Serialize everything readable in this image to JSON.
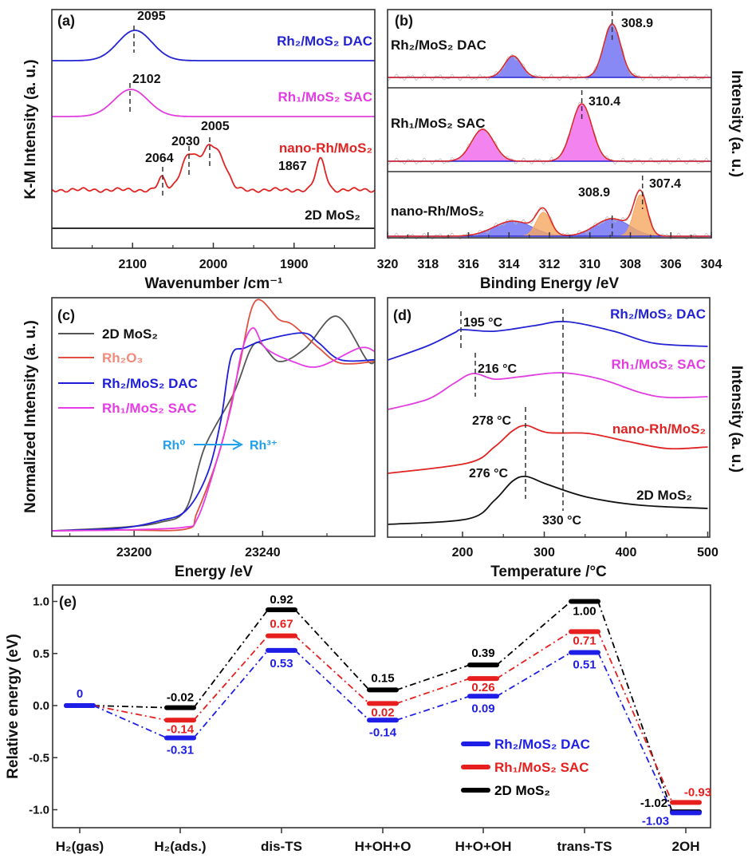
{
  "chart_data": [
    {
      "type": "line",
      "panel_label": "(a)",
      "xlabel": "Wavenumber /cm⁻¹",
      "ylabel": "K-M Intensity (a. u.)",
      "xlim": [
        2200,
        1800
      ],
      "xticks": [
        "2100",
        "2000",
        "1900"
      ],
      "xtick_values": [
        2100,
        2000,
        1900
      ],
      "series": [
        {
          "name": "Rh₂/MoS₂ DAC",
          "color": "#2323d2",
          "peaks": [
            {
              "center": 2097,
              "amplitude": 38,
              "width": 21
            }
          ]
        },
        {
          "name": "Rh₁/MoS₂ SAC",
          "color": "#e03ee0",
          "peaks": [
            {
              "center": 2102,
              "amplitude": 34,
              "width": 21
            }
          ]
        },
        {
          "name": "nano-Rh/MoS₂",
          "color": "#e02424",
          "peaks": [
            {
              "center": 2064,
              "amplitude": 15,
              "width": 4.5
            },
            {
              "center": 2030,
              "amplitude": 44,
              "width": 10
            },
            {
              "center": 2004,
              "amplitude": 52,
              "width": 10
            },
            {
              "center": 1988,
              "amplitude": 24,
              "width": 8
            },
            {
              "center": 1867,
              "amplitude": 38,
              "width": 6
            }
          ]
        },
        {
          "name": "2D MoS₂",
          "color": "#111111",
          "peaks": []
        }
      ],
      "annotations": [
        "2095",
        "2102",
        "2064",
        "2030",
        "2005",
        "1867"
      ]
    },
    {
      "type": "area",
      "panel_label": "(b)",
      "xlabel": "Binding Energy /eV",
      "ylabel": "Intensity (a. u.)",
      "xlim": [
        320,
        304
      ],
      "xticks": [
        "320",
        "318",
        "316",
        "314",
        "312",
        "310",
        "308",
        "306",
        "304"
      ],
      "xtick_values": [
        320,
        318,
        316,
        314,
        312,
        310,
        308,
        306,
        304
      ],
      "envelope_color": "#e02424",
      "subplots": [
        {
          "name": "Rh₂/MoS₂ DAC",
          "components": [
            {
              "center": 308.9,
              "amplitude": 67,
              "width": 0.42,
              "color": "#6b6bf2"
            },
            {
              "center": 313.8,
              "amplitude": 27,
              "width": 0.42,
              "color": "#6b6bf2"
            }
          ],
          "annotations": [
            "308.9"
          ]
        },
        {
          "name": "Rh₁/MoS₂ SAC",
          "components": [
            {
              "center": 310.4,
              "amplitude": 72,
              "width": 0.5,
              "color": "#f064ea"
            },
            {
              "center": 315.3,
              "amplitude": 40,
              "width": 0.55,
              "color": "#f064ea"
            }
          ],
          "annotations": [
            "310.4"
          ]
        },
        {
          "name": "nano-Rh/MoS₂",
          "components": [
            {
              "center": 308.9,
              "amplitude": 22,
              "width": 0.85,
              "color": "#6b6bf2"
            },
            {
              "center": 313.8,
              "amplitude": 19,
              "width": 0.95,
              "color": "#6b6bf2"
            },
            {
              "center": 307.5,
              "amplitude": 52,
              "width": 0.33,
              "color": "#f5a860"
            },
            {
              "center": 312.3,
              "amplitude": 30,
              "width": 0.35,
              "color": "#f5a860"
            }
          ],
          "annotations": [
            "308.9",
            "307.4"
          ]
        }
      ]
    },
    {
      "type": "line",
      "panel_label": "(c)",
      "xlabel": "Energy /eV",
      "ylabel": "Normalized Intensity (a. u.)",
      "xlim": [
        23174,
        23275
      ],
      "xticks": [
        "23200",
        "23240"
      ],
      "xtick_values": [
        23200,
        23240
      ],
      "legend_position": "top-left",
      "series": [
        {
          "name": "2D MoS₂",
          "color": "#555555",
          "label_color": "#111111",
          "x": [
            23174.4,
            23195.5,
            23208,
            23216.1,
            23222.0,
            23231.0,
            23237.7,
            23245.1,
            23253.3,
            23263.0,
            23272.4,
            23274.9
          ],
          "y": [
            0,
            0.02,
            0.05,
            0.13,
            0.5,
            0.82,
            1.12,
            1.01,
            1.09,
            1.28,
            1.02,
            1.01
          ]
        },
        {
          "name": "Rh₂O₃",
          "color": "#e05040",
          "label_color": "#f08a7a",
          "x": [
            23174.4,
            23195.5,
            23216.1,
            23219.6,
            23227.0,
            23232.7,
            23237.7,
            23245.1,
            23249.3,
            23257.5,
            23264.2,
            23274.9
          ],
          "y": [
            0,
            0.005,
            0.01,
            0.11,
            0.5,
            0.98,
            1.37,
            1.26,
            1.23,
            1.09,
            1.0,
            1.01
          ]
        },
        {
          "name": "Rh₂/MoS₂ DAC",
          "color": "#1e1ed8",
          "label_color": "#1e1ed8",
          "x": [
            23174.4,
            23195.5,
            23207.9,
            23216.1,
            23222.8,
            23227.0,
            23230.2,
            23234.4,
            23240.9,
            23252.6,
            23257.5,
            23264.2,
            23274.9
          ],
          "y": [
            0,
            0.015,
            0.06,
            0.12,
            0.34,
            0.66,
            1.04,
            1.09,
            1.14,
            1.18,
            1.12,
            1.02,
            1.02
          ]
        },
        {
          "name": "Rh₁/MoS₂ SAC",
          "color": "#e63ce6",
          "label_color": "#e63ce6",
          "x": [
            23174.4,
            23195.5,
            23215.3,
            23219.6,
            23224.5,
            23230.2,
            23233.5,
            23237.0,
            23240.9,
            23249.3,
            23257.5,
            23270.0,
            23274.9
          ],
          "y": [
            0,
            0.005,
            0.02,
            0.07,
            0.34,
            0.74,
            1.07,
            1.21,
            1.09,
            1.01,
            0.98,
            1.09,
            1.07
          ]
        }
      ],
      "annotation": {
        "from": "Rh⁰",
        "to": "Rh³⁺",
        "color": "#20a0e8"
      }
    },
    {
      "type": "line",
      "panel_label": "(d)",
      "xlabel": "Temperature /°C",
      "ylabel": "Intensity (a. u.)",
      "xlim": [
        108,
        500
      ],
      "xticks": [
        "200",
        "300",
        "400",
        "500"
      ],
      "xtick_values": [
        200,
        300,
        400,
        500
      ],
      "series": [
        {
          "name": "Rh₂/MoS₂ DAC",
          "color": "#2323d2",
          "x": [
            109,
            158,
            190,
            200,
            239,
            288,
            327,
            385,
            434,
            500
          ],
          "y": [
            2.29,
            2.47,
            2.63,
            2.67,
            2.65,
            2.72,
            2.77,
            2.65,
            2.5,
            2.46
          ]
        },
        {
          "name": "Rh₁/MoS₂ SAC",
          "color": "#e03ee0",
          "x": [
            109,
            158,
            190,
            213,
            239,
            271,
            320,
            369,
            418,
            451,
            500
          ],
          "y": [
            1.67,
            1.8,
            2.0,
            2.12,
            2.05,
            2.08,
            2.13,
            2.05,
            1.88,
            1.82,
            1.83
          ]
        },
        {
          "name": "nano-Rh/MoS₂",
          "color": "#e02424",
          "x": [
            109,
            207,
            239,
            261,
            278,
            304,
            353,
            402,
            451,
            500
          ],
          "y": [
            0.87,
            1.0,
            1.2,
            1.4,
            1.47,
            1.38,
            1.37,
            1.27,
            1.18,
            1.2
          ]
        },
        {
          "name": "2D MoS₂",
          "color": "#111111",
          "x": [
            109,
            207,
            239,
            261,
            278,
            304,
            353,
            418,
            500
          ],
          "y": [
            0.23,
            0.3,
            0.53,
            0.77,
            0.83,
            0.73,
            0.57,
            0.47,
            0.43
          ]
        }
      ],
      "annotations": [
        "195 °C",
        "216 °C",
        "278 °C",
        "276 °C",
        "330 °C"
      ]
    },
    {
      "type": "line",
      "panel_label": "(e)",
      "xlabel": "",
      "ylabel": "Relative energy (eV)",
      "ylim": [
        -1.12,
        1.2
      ],
      "yticks": [
        "1.0",
        "0.5",
        "0.0",
        "-0.5",
        "-1.0"
      ],
      "ytick_values": [
        1.0,
        0.5,
        0.0,
        -0.5,
        -1.0
      ],
      "categories": [
        "H₂(gas)",
        "H₂(ads.)",
        "dis-TS",
        "H+OH+O",
        "H+O+OH",
        "trans-TS",
        "2OH"
      ],
      "legend_position": "bottom-right",
      "series": [
        {
          "name": "Rh₂/MoS₂ DAC",
          "color": "#1e1ee6",
          "values": [
            0,
            -0.31,
            0.53,
            -0.14,
            0.09,
            0.51,
            -1.03
          ],
          "labels": [
            "0",
            "-0.31",
            "0.53",
            "-0.14",
            "0.09",
            "0.51",
            "-1.03"
          ]
        },
        {
          "name": "Rh₁/MoS₂ SAC",
          "color": "#e61e1e",
          "values": [
            0,
            -0.14,
            0.67,
            0.02,
            0.26,
            0.71,
            -0.93
          ],
          "labels": [
            "",
            "-0.14",
            "0.67",
            "0.02",
            "0.26",
            "0.71",
            "-0.93"
          ]
        },
        {
          "name": "2D MoS₂",
          "color": "#000000",
          "values": [
            0,
            -0.02,
            0.92,
            0.15,
            0.39,
            1.0,
            -1.02
          ],
          "labels": [
            "",
            "-0.02",
            "0.92",
            "0.15",
            "0.39",
            "1.00",
            "-1.02"
          ]
        }
      ]
    }
  ]
}
